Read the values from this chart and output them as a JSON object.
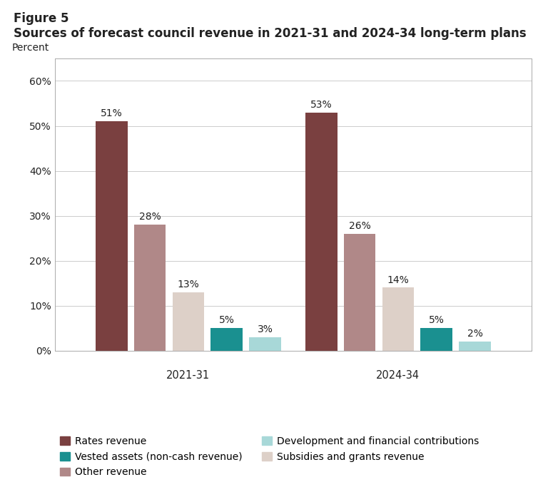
{
  "figure_label": "Figure 5",
  "title": "Sources of forecast council revenue in 2021-31 and 2024-34 long-term plans",
  "ylabel": "Percent",
  "groups": [
    "2021-31",
    "2024-34"
  ],
  "categories": [
    "Rates revenue",
    "Other revenue",
    "Subsidies and grants revenue",
    "Vested assets (non-cash revenue)",
    "Development and financial contributions"
  ],
  "values": {
    "2021-31": [
      51,
      28,
      13,
      5,
      3
    ],
    "2024-34": [
      53,
      26,
      14,
      5,
      2
    ]
  },
  "colors": [
    "#7a4040",
    "#b08888",
    "#ddd0c8",
    "#1a9090",
    "#a8d8d8"
  ],
  "ylim": [
    0,
    65
  ],
  "yticks": [
    0,
    10,
    20,
    30,
    40,
    50,
    60
  ],
  "ytick_labels": [
    "0%",
    "10%",
    "20%",
    "30%",
    "40%",
    "50%",
    "60%"
  ],
  "bar_width": 0.07,
  "background_color": "#ffffff",
  "plot_bg_color": "#ffffff",
  "grid_color": "#cccccc",
  "text_color": "#222222",
  "bracket_color": "#c0a8a0",
  "title_fontsize": 12,
  "label_fontsize": 10,
  "tick_fontsize": 10,
  "legend_fontsize": 10,
  "annotation_fontsize": 10
}
